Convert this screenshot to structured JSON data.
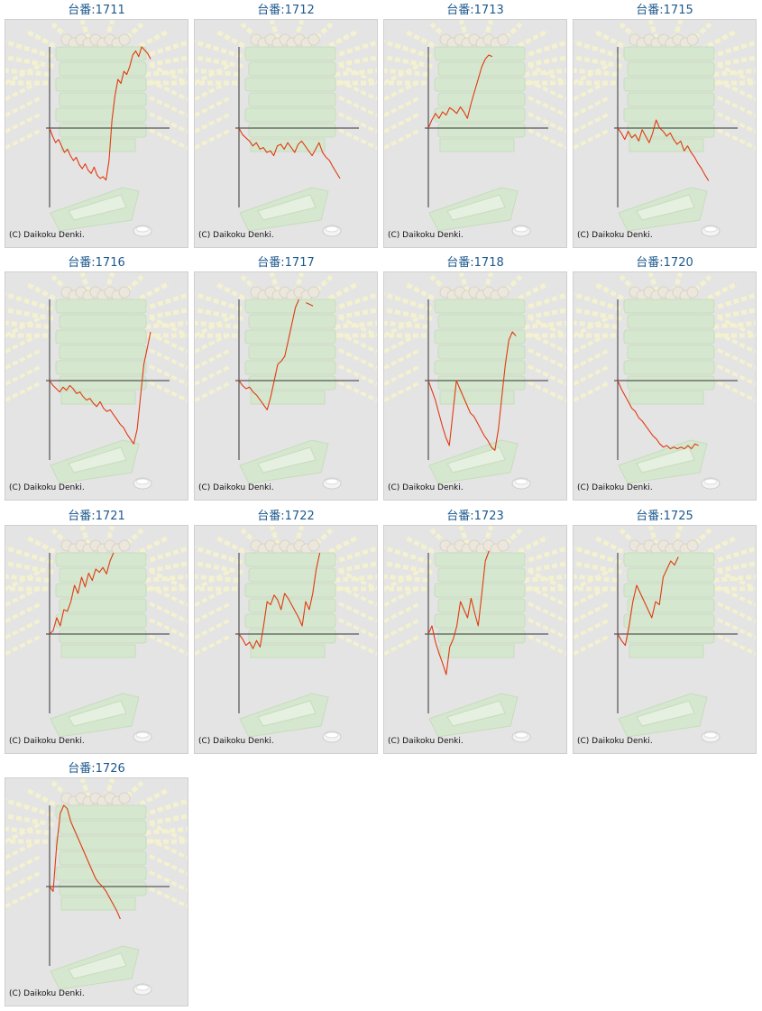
{
  "copyright": "(C) Daikoku Denki.",
  "colors": {
    "title": "#1d5a8e",
    "line": "#e03a10",
    "axis": "#333333",
    "panel_bg": "#e4e4e4"
  },
  "chart_data": [
    {
      "type": "line",
      "title": "台番:1711",
      "values": [
        0,
        -10,
        -18,
        -14,
        -22,
        -30,
        -26,
        -34,
        -40,
        -36,
        -45,
        -50,
        -44,
        -52,
        -56,
        -48,
        -58,
        -62,
        -60,
        -64,
        -40,
        10,
        40,
        60,
        55,
        70,
        66,
        76,
        90,
        95,
        88,
        100,
        96,
        92,
        85
      ]
    },
    {
      "type": "line",
      "title": "台番:1712",
      "values": [
        0,
        -8,
        -12,
        -16,
        -22,
        -18,
        -26,
        -24,
        -30,
        -28,
        -34,
        -22,
        -20,
        -26,
        -18,
        -24,
        -30,
        -20,
        -16,
        -22,
        -28,
        -34,
        -26,
        -18,
        -30,
        -36,
        -40,
        -48,
        -55,
        -62
      ]
    },
    {
      "type": "line",
      "title": "台番:1713",
      "values": [
        0,
        10,
        18,
        12,
        20,
        16,
        25,
        22,
        18,
        26,
        20,
        12,
        30,
        45,
        60,
        75,
        85,
        90,
        88
      ]
    },
    {
      "type": "line",
      "title": "台番:1715",
      "values": [
        0,
        -6,
        -14,
        -4,
        -12,
        -8,
        -16,
        -2,
        -10,
        -18,
        -6,
        10,
        0,
        -4,
        -10,
        -6,
        -14,
        -20,
        -16,
        -28,
        -22,
        -30,
        -36,
        -44,
        -50,
        -58,
        -65
      ]
    },
    {
      "type": "line",
      "title": "台番:1716",
      "values": [
        0,
        -6,
        -10,
        -14,
        -8,
        -12,
        -6,
        -10,
        -16,
        -14,
        -20,
        -24,
        -22,
        -28,
        -32,
        -26,
        -34,
        -38,
        -36,
        -42,
        -48,
        -54,
        -58,
        -66,
        -72,
        -78,
        -60,
        -20,
        20,
        40,
        60
      ]
    },
    {
      "type": "line",
      "title": "台番:1717",
      "values": [
        0,
        -6,
        -10,
        -8,
        -14,
        -18,
        -24,
        -30,
        -36,
        -20,
        0,
        20,
        24,
        30,
        50,
        70,
        90,
        100,
        null,
        96,
        94,
        92
      ]
    },
    {
      "type": "line",
      "title": "台番:1718",
      "values": [
        0,
        -12,
        -24,
        -40,
        -56,
        -70,
        -80,
        -40,
        0,
        -10,
        -20,
        -30,
        -40,
        -44,
        -52,
        -60,
        -68,
        -74,
        -82,
        -86,
        -60,
        -20,
        20,
        50,
        60,
        55
      ]
    },
    {
      "type": "line",
      "title": "台番:1720",
      "values": [
        0,
        -10,
        -18,
        -26,
        -34,
        -38,
        -46,
        -50,
        -56,
        -62,
        -68,
        -72,
        -78,
        -82,
        -80,
        -84,
        -82,
        -84,
        -82,
        -84,
        -80,
        -84,
        -78,
        -80
      ]
    },
    {
      "type": "line",
      "title": "台番:1721",
      "values": [
        0,
        4,
        20,
        10,
        30,
        28,
        40,
        60,
        50,
        70,
        58,
        75,
        66,
        80,
        76,
        82,
        74,
        90,
        100
      ]
    },
    {
      "type": "line",
      "title": "台番:1722",
      "values": [
        0,
        -6,
        -14,
        -10,
        -18,
        -8,
        -16,
        10,
        40,
        36,
        48,
        42,
        30,
        50,
        44,
        36,
        28,
        20,
        10,
        40,
        30,
        50,
        80,
        100
      ]
    },
    {
      "type": "line",
      "title": "台番:1723",
      "values": [
        0,
        10,
        -10,
        -24,
        -36,
        -50,
        -16,
        -6,
        10,
        40,
        30,
        20,
        44,
        26,
        10,
        50,
        90,
        110
      ]
    },
    {
      "type": "line",
      "title": "台番:1725",
      "values": [
        0,
        -8,
        -14,
        10,
        40,
        60,
        50,
        40,
        30,
        20,
        40,
        36,
        70,
        80,
        90,
        85,
        95
      ]
    },
    {
      "type": "line",
      "title": "台番:1726",
      "values": [
        0,
        -6,
        50,
        90,
        100,
        96,
        80,
        70,
        60,
        50,
        40,
        30,
        20,
        10,
        4,
        0,
        -6,
        -14,
        -22,
        -30,
        -40
      ]
    }
  ]
}
